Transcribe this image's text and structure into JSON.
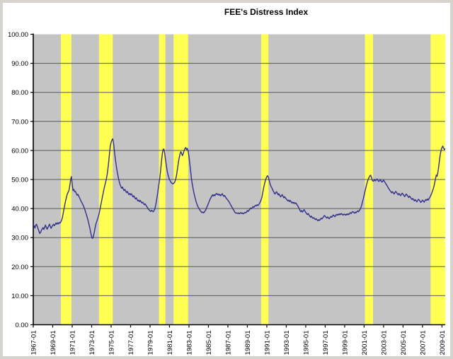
{
  "title": "FEE's Distress Index",
  "chart_data": {
    "type": "line",
    "title": "FEE's Distress Index",
    "xlabel": "",
    "ylabel": "",
    "ylim": [
      0,
      100
    ],
    "y_tick_step": 10,
    "y_tick_format_decimals": 2,
    "grid": true,
    "legend": "none",
    "plot_bg_color": "#c4c4c4",
    "gridline_color": "#5a5a5a",
    "axis_color": "#000000",
    "line_color": "#30308c",
    "band_color": "#ffff54",
    "x_start": "1967-01",
    "x_freq": "monthly",
    "x_tick_interval_months": 24,
    "x_tick_labels": [
      "1967-01",
      "1969-01",
      "1971-01",
      "1973-01",
      "1975-01",
      "1977-01",
      "1979-01",
      "1981-01",
      "1983-01",
      "1985-01",
      "1987-01",
      "1989-01",
      "1991-01",
      "1993-01",
      "1995-01",
      "1997-01",
      "1999-01",
      "2001-01",
      "2003-01",
      "2005-01",
      "2007-01",
      "2009-01"
    ],
    "y_tick_labels": [
      "0.00",
      "10.00",
      "20.00",
      "30.00",
      "40.00",
      "50.00",
      "60.00",
      "70.00",
      "80.00",
      "90.00",
      "100.00"
    ],
    "recession_bands": [
      {
        "from": "1969-11",
        "to": "1970-12"
      },
      {
        "from": "1973-10",
        "to": "1975-03"
      },
      {
        "from": "1979-12",
        "to": "1980-08"
      },
      {
        "from": "1981-06",
        "to": "1982-12"
      },
      {
        "from": "1990-06",
        "to": "1991-03"
      },
      {
        "from": "2001-02",
        "to": "2001-12"
      },
      {
        "from": "2007-11",
        "to": "2009-05"
      }
    ],
    "series": [
      {
        "name": "FEE's Distress Index",
        "start": "1967-01",
        "freq": "monthly",
        "values": [
          34.5,
          34.0,
          33.3,
          34.2,
          34.6,
          33.8,
          33.0,
          32.2,
          31.4,
          31.8,
          32.5,
          33.0,
          33.4,
          32.8,
          33.5,
          34.3,
          33.6,
          32.9,
          33.4,
          34.0,
          34.6,
          33.8,
          33.2,
          33.8,
          34.2,
          34.6,
          34.1,
          34.5,
          35.0,
          34.6,
          35.1,
          34.7,
          35.2,
          35.0,
          35.4,
          36.0,
          37.0,
          38.5,
          40.0,
          41.5,
          42.8,
          44.0,
          45.0,
          45.6,
          46.2,
          47.8,
          49.8,
          51.0,
          48.5,
          46.2,
          46.6,
          45.8,
          45.9,
          45.2,
          44.6,
          44.9,
          44.3,
          43.7,
          43.1,
          42.5,
          42.0,
          41.4,
          40.8,
          40.1,
          39.3,
          38.4,
          37.5,
          36.5,
          35.4,
          34.2,
          32.9,
          31.5,
          30.2,
          29.7,
          30.3,
          31.5,
          33.0,
          34.4,
          35.3,
          36.2,
          37.0,
          38.0,
          39.3,
          40.8,
          42.2,
          43.6,
          45.0,
          46.4,
          47.7,
          48.8,
          50.0,
          51.5,
          53.5,
          56.0,
          59.0,
          61.5,
          62.8,
          63.6,
          64.0,
          62.5,
          60.0,
          57.5,
          55.5,
          53.5,
          52.0,
          50.5,
          49.3,
          48.3,
          47.6,
          47.0,
          47.4,
          46.7,
          46.2,
          46.6,
          46.0,
          45.5,
          45.9,
          45.3,
          44.8,
          45.2,
          44.7,
          45.1,
          44.5,
          44.0,
          44.4,
          43.8,
          43.3,
          43.7,
          43.1,
          42.6,
          42.9,
          42.4,
          42.8,
          42.3,
          41.9,
          42.2,
          41.7,
          41.3,
          41.6,
          41.1,
          40.7,
          40.2,
          39.8,
          39.5,
          39.2,
          39.0,
          39.4,
          39.1,
          38.9,
          39.3,
          40.0,
          41.2,
          42.8,
          44.6,
          46.5,
          48.5,
          50.5,
          53.0,
          56.0,
          58.5,
          60.3,
          60.5,
          59.2,
          57.0,
          55.0,
          53.2,
          51.8,
          50.8,
          50.0,
          49.4,
          49.0,
          48.7,
          48.5,
          48.6,
          48.9,
          49.5,
          50.5,
          52.0,
          54.0,
          56.0,
          57.5,
          58.8,
          59.6,
          58.9,
          58.2,
          59.0,
          59.9,
          60.6,
          61.0,
          60.3,
          60.7,
          59.8,
          58.0,
          55.5,
          53.0,
          50.5,
          48.5,
          47.0,
          45.6,
          44.3,
          43.2,
          42.2,
          41.4,
          40.7,
          40.2,
          39.7,
          39.3,
          38.9,
          38.6,
          38.8,
          38.5,
          38.8,
          39.2,
          39.7,
          40.4,
          41.1,
          41.8,
          42.5,
          43.2,
          43.7,
          44.2,
          44.7,
          44.3,
          44.8,
          44.4,
          44.9,
          45.2,
          44.8,
          45.0,
          44.6,
          44.9,
          44.4,
          44.7,
          45.1,
          44.6,
          44.2,
          44.5,
          44.0,
          43.6,
          43.2,
          42.9,
          42.5,
          42.0,
          41.5,
          41.0,
          40.5,
          40.0,
          39.5,
          39.0,
          38.6,
          38.4,
          38.5,
          38.3,
          38.5,
          38.2,
          38.4,
          38.6,
          38.3,
          38.5,
          38.2,
          38.4,
          38.7,
          38.5,
          38.8,
          39.3,
          39.0,
          39.4,
          39.8,
          40.2,
          39.9,
          40.3,
          40.7,
          40.4,
          40.8,
          41.1,
          40.9,
          41.3,
          41.0,
          41.4,
          41.8,
          42.3,
          43.0,
          44.0,
          45.5,
          47.0,
          48.3,
          49.4,
          50.3,
          51.0,
          51.3,
          50.7,
          49.6,
          48.5,
          47.7,
          47.2,
          46.6,
          46.0,
          45.5,
          45.0,
          45.4,
          45.8,
          45.2,
          44.7,
          45.1,
          44.5,
          44.0,
          44.4,
          44.8,
          44.2,
          43.7,
          44.1,
          43.6,
          43.3,
          43.0,
          42.6,
          42.9,
          42.4,
          42.8,
          42.3,
          41.9,
          42.2,
          41.8,
          42.1,
          41.7,
          41.9,
          41.4,
          41.0,
          40.5,
          39.9,
          39.3,
          38.9,
          39.3,
          38.8,
          39.2,
          39.6,
          39.1,
          38.7,
          38.3,
          37.9,
          38.3,
          37.8,
          37.4,
          37.0,
          37.4,
          36.9,
          36.6,
          36.9,
          36.5,
          36.2,
          36.5,
          36.1,
          35.8,
          36.2,
          35.9,
          36.3,
          36.7,
          36.4,
          36.8,
          37.2,
          37.6,
          37.3,
          37.0,
          36.7,
          37.1,
          36.8,
          36.5,
          36.9,
          37.3,
          37.0,
          37.4,
          37.8,
          37.5,
          37.2,
          37.6,
          38.0,
          37.7,
          38.1,
          37.8,
          38.2,
          37.9,
          38.3,
          38.0,
          37.7,
          38.1,
          38.0,
          37.7,
          38.1,
          37.8,
          38.2,
          37.9,
          38.3,
          38.6,
          38.3,
          38.7,
          39.0,
          38.7,
          38.4,
          38.8,
          38.5,
          38.9,
          39.2,
          38.9,
          39.3,
          39.7,
          40.3,
          41.2,
          42.3,
          43.4,
          44.6,
          45.8,
          47.0,
          48.2,
          49.2,
          50.0,
          50.7,
          51.2,
          51.5,
          50.8,
          49.8,
          49.4,
          49.6,
          50.0,
          49.5,
          49.9,
          50.2,
          49.7,
          49.3,
          49.6,
          50.0,
          49.5,
          49.1,
          49.4,
          49.8,
          49.3,
          48.9,
          48.4,
          48.0,
          47.5,
          47.0,
          46.6,
          46.2,
          45.8,
          45.4,
          45.8,
          45.4,
          45.0,
          45.5,
          45.9,
          45.5,
          45.1,
          44.7,
          45.2,
          44.8,
          44.4,
          44.9,
          45.3,
          44.9,
          44.5,
          44.1,
          44.6,
          45.0,
          44.6,
          44.2,
          43.8,
          44.3,
          43.9,
          43.5,
          43.1,
          43.5,
          43.0,
          42.6,
          43.1,
          42.7,
          42.3,
          42.8,
          43.2,
          42.9,
          42.5,
          42.1,
          42.5,
          42.9,
          42.6,
          42.2,
          42.7,
          43.1,
          42.8,
          43.3,
          42.9,
          43.4,
          43.8,
          44.3,
          45.0,
          45.8,
          46.6,
          47.5,
          48.8,
          50.3,
          51.5,
          51.1,
          52.5,
          54.5,
          56.8,
          58.8,
          60.2,
          61.0,
          61.5,
          60.8,
          60.3,
          60.6
        ]
      }
    ]
  }
}
